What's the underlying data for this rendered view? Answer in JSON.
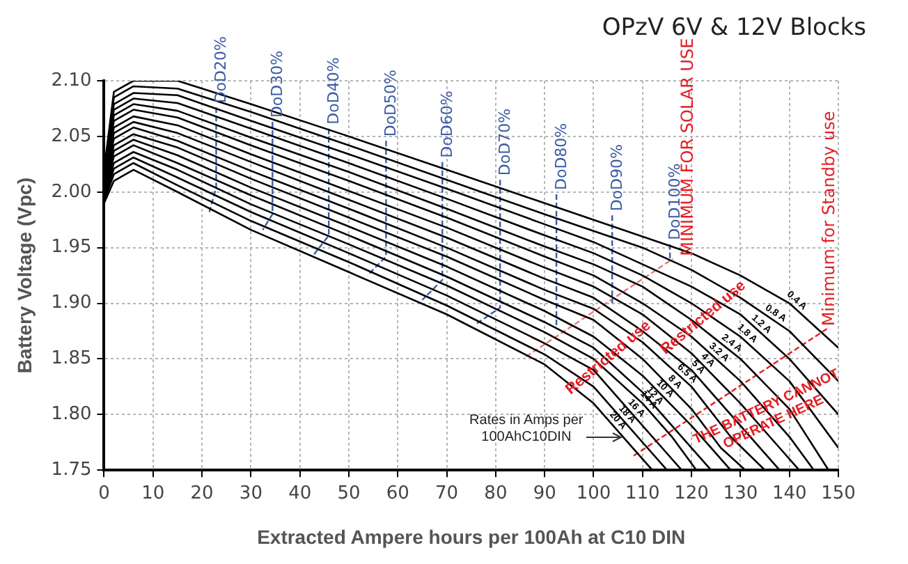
{
  "chart_data": {
    "type": "line",
    "title": "OPzV 6V & 12V Blocks",
    "xlabel": "Extracted Ampere hours per 100Ah at C10 DIN",
    "ylabel": "Battery Voltage (Vpc)",
    "xlim": [
      0,
      150
    ],
    "xticks": [
      0,
      10,
      20,
      30,
      40,
      50,
      60,
      70,
      80,
      90,
      100,
      110,
      120,
      130,
      140,
      150
    ],
    "ylim": [
      1.75,
      2.1
    ],
    "yticks": [
      1.75,
      {
        "value": 1.8,
        "label": "1.80"
      },
      1.85,
      {
        "value": 1.9,
        "label": "1.90"
      },
      1.95,
      {
        "value": 2.0,
        "label": "2.00"
      },
      2.05,
      {
        "value": 2.1,
        "label": "2.10"
      }
    ],
    "grid": true,
    "legend": false,
    "marker": "none",
    "series": [
      {
        "name": "0.4 A",
        "color": "#000000",
        "line_style": "solid",
        "x": [
          0,
          2,
          6,
          15,
          30,
          50,
          70,
          90,
          100,
          110,
          120,
          130,
          140,
          150
        ],
        "values": [
          2.02,
          2.09,
          2.1,
          2.1,
          2.079,
          2.05,
          2.02,
          1.99,
          1.975,
          1.96,
          1.945,
          1.925,
          1.9,
          1.86
        ]
      },
      {
        "name": "0.8 A",
        "color": "#000000",
        "line_style": "solid",
        "x": [
          0,
          2,
          6,
          15,
          30,
          50,
          70,
          90,
          100,
          110,
          120,
          130,
          140,
          150
        ],
        "values": [
          2.018,
          2.085,
          2.095,
          2.093,
          2.072,
          2.042,
          2.011,
          1.98,
          1.965,
          1.95,
          1.93,
          1.905,
          1.875,
          1.83
        ]
      },
      {
        "name": "1.2 A",
        "color": "#000000",
        "line_style": "solid",
        "x": [
          0,
          2,
          6,
          15,
          30,
          50,
          70,
          90,
          100,
          110,
          120,
          130,
          140,
          150
        ],
        "values": [
          2.016,
          2.079,
          2.089,
          2.087,
          2.064,
          2.034,
          2.003,
          1.971,
          1.955,
          1.935,
          1.915,
          1.89,
          1.85,
          1.8
        ]
      },
      {
        "name": "1.8 A",
        "color": "#000000",
        "line_style": "solid",
        "x": [
          0,
          2,
          6,
          15,
          30,
          50,
          70,
          90,
          100,
          110,
          120,
          130,
          140,
          150
        ],
        "values": [
          2.014,
          2.074,
          2.084,
          2.08,
          2.057,
          2.026,
          1.994,
          1.961,
          1.945,
          1.925,
          1.9,
          1.87,
          1.83,
          1.77
        ]
      },
      {
        "name": "2.4 A",
        "color": "#000000",
        "line_style": "solid",
        "x": [
          0,
          2,
          6,
          15,
          30,
          50,
          70,
          90,
          100,
          110,
          120,
          130,
          140,
          148
        ],
        "values": [
          2.012,
          2.069,
          2.079,
          2.073,
          2.049,
          2.018,
          1.985,
          1.951,
          1.935,
          1.915,
          1.885,
          1.85,
          1.805,
          1.75
        ]
      },
      {
        "name": "3.2 A",
        "color": "#000000",
        "line_style": "solid",
        "x": [
          0,
          2,
          6,
          15,
          30,
          50,
          70,
          90,
          100,
          110,
          120,
          130,
          140,
          145
        ],
        "values": [
          2.01,
          2.064,
          2.074,
          2.067,
          2.042,
          2.01,
          1.977,
          1.942,
          1.925,
          1.9,
          1.87,
          1.83,
          1.78,
          1.75
        ]
      },
      {
        "name": "4 A",
        "color": "#000000",
        "line_style": "solid",
        "x": [
          0,
          2,
          6,
          15,
          30,
          50,
          70,
          90,
          100,
          110,
          120,
          130,
          138,
          142
        ],
        "values": [
          2.008,
          2.058,
          2.068,
          2.06,
          2.034,
          2.001,
          1.968,
          1.932,
          1.915,
          1.89,
          1.855,
          1.81,
          1.77,
          1.75
        ]
      },
      {
        "name": "5 A",
        "color": "#000000",
        "line_style": "solid",
        "x": [
          0,
          2,
          6,
          15,
          30,
          50,
          70,
          90,
          100,
          110,
          120,
          130,
          138
        ],
        "values": [
          2.006,
          2.053,
          2.063,
          2.053,
          2.027,
          1.993,
          1.959,
          1.922,
          1.905,
          1.875,
          1.84,
          1.79,
          1.75
        ]
      },
      {
        "name": "6.5 A",
        "color": "#000000",
        "line_style": "solid",
        "x": [
          0,
          2,
          6,
          15,
          30,
          50,
          70,
          90,
          100,
          110,
          120,
          128,
          135
        ],
        "values": [
          2.004,
          2.048,
          2.058,
          2.046,
          2.019,
          1.985,
          1.95,
          1.912,
          1.895,
          1.865,
          1.825,
          1.78,
          1.75
        ]
      },
      {
        "name": "8 A",
        "color": "#000000",
        "line_style": "solid",
        "x": [
          0,
          2,
          6,
          15,
          30,
          50,
          70,
          90,
          100,
          110,
          120,
          126,
          131
        ],
        "values": [
          2.002,
          2.042,
          2.052,
          2.04,
          2.012,
          1.977,
          1.942,
          1.903,
          1.885,
          1.85,
          1.805,
          1.77,
          1.75
        ]
      },
      {
        "name": "10 A",
        "color": "#000000",
        "line_style": "solid",
        "x": [
          0,
          2,
          6,
          15,
          30,
          50,
          70,
          90,
          100,
          110,
          120,
          128
        ],
        "values": [
          2.0,
          2.037,
          2.047,
          2.033,
          2.004,
          1.969,
          1.933,
          1.893,
          1.87,
          1.835,
          1.79,
          1.75
        ]
      },
      {
        "name": "12 A",
        "color": "#000000",
        "line_style": "solid",
        "x": [
          0,
          2,
          6,
          15,
          30,
          50,
          70,
          90,
          100,
          110,
          118,
          124
        ],
        "values": [
          1.998,
          2.032,
          2.042,
          2.026,
          1.997,
          1.961,
          1.924,
          1.883,
          1.86,
          1.82,
          1.78,
          1.75
        ]
      },
      {
        "name": "14 A",
        "color": "#000000",
        "line_style": "solid",
        "x": [
          0,
          2,
          6,
          15,
          30,
          50,
          70,
          90,
          100,
          110,
          116,
          121
        ],
        "values": [
          1.996,
          2.026,
          2.036,
          2.02,
          1.989,
          1.953,
          1.916,
          1.874,
          1.85,
          1.81,
          1.78,
          1.75
        ]
      },
      {
        "name": "16 A",
        "color": "#000000",
        "line_style": "solid",
        "x": [
          0,
          2,
          6,
          15,
          30,
          50,
          70,
          90,
          100,
          108,
          114,
          118
        ],
        "values": [
          1.994,
          2.021,
          2.031,
          2.013,
          1.982,
          1.945,
          1.907,
          1.864,
          1.84,
          1.8,
          1.77,
          1.75
        ]
      },
      {
        "name": "18 A",
        "color": "#000000",
        "line_style": "solid",
        "x": [
          0,
          2,
          6,
          15,
          30,
          50,
          70,
          90,
          100,
          106,
          111,
          115
        ],
        "values": [
          1.992,
          2.016,
          2.026,
          2.006,
          1.974,
          1.937,
          1.898,
          1.854,
          1.825,
          1.795,
          1.77,
          1.75
        ]
      },
      {
        "name": "20 A",
        "color": "#000000",
        "line_style": "solid",
        "x": [
          0,
          2,
          6,
          15,
          30,
          50,
          70,
          90,
          100,
          106,
          112
        ],
        "values": [
          1.99,
          2.01,
          2.02,
          2.0,
          1.966,
          1.928,
          1.89,
          1.845,
          1.81,
          1.78,
          1.75
        ]
      },
      {
        "name": "DoD20%",
        "color": "#3b5ba5",
        "line_style": "dashed",
        "x": [
          22.9,
          22.9,
          21.5
        ],
        "values": [
          2.076,
          2.004,
          1.982
        ]
      },
      {
        "name": "DoD30%",
        "color": "#3b5ba5",
        "line_style": "dashed",
        "x": [
          34.4,
          34.4,
          32.4
        ],
        "values": [
          2.063,
          1.98,
          1.966
        ]
      },
      {
        "name": "DoD40%",
        "color": "#3b5ba5",
        "line_style": "dashed",
        "x": [
          45.9,
          45.9,
          42.9
        ],
        "values": [
          2.057,
          1.961,
          1.944
        ]
      },
      {
        "name": "DoD50%",
        "color": "#3b5ba5",
        "line_style": "dashed",
        "x": [
          57.6,
          57.6,
          53.8
        ],
        "values": [
          2.046,
          1.942,
          1.925
        ]
      },
      {
        "name": "DoD60%",
        "color": "#3b5ba5",
        "line_style": "dashed",
        "x": [
          69.1,
          69.1,
          65.0
        ],
        "values": [
          2.027,
          1.921,
          1.903
        ]
      },
      {
        "name": "DoD70%",
        "color": "#3b5ba5",
        "line_style": "dashed",
        "x": [
          80.9,
          80.9,
          75.9
        ],
        "values": [
          2.011,
          1.896,
          1.881
        ]
      },
      {
        "name": "DoD80%",
        "color": "#3b5ba5",
        "line_style": "dashed",
        "x": [
          92.4,
          92.4
        ],
        "values": [
          1.998,
          1.878
        ]
      },
      {
        "name": "DoD90%",
        "color": "#3b5ba5",
        "line_style": "dashed",
        "x": [
          103.8,
          103.8
        ],
        "values": [
          1.979,
          1.9
        ]
      },
      {
        "name": "DoD100%",
        "color": "#3b5ba5",
        "line_style": "dashed",
        "x": [
          115.6,
          115.6
        ],
        "values": [
          1.953,
          1.94
        ]
      },
      {
        "color": "#f07878",
        "line_style": "dashed",
        "x": [
          86.2,
          116.2
        ],
        "values": [
          1.852,
          1.94
        ]
      },
      {
        "color": "#e31e24",
        "line_style": "dashed",
        "x": [
          108.2,
          148
        ],
        "values": [
          1.763,
          1.878
        ]
      }
    ],
    "annotations": [
      {
        "text": "Restricted use",
        "x": 103,
        "y": 1.851
      },
      {
        "text": "Restricted use",
        "x": 122.4,
        "y": 1.887
      },
      {
        "text": "THE BATTERY CANNOT\nOPERATE HERE",
        "x": 136,
        "y": 1.8
      },
      "MINIMUM FOR SOLAR USE",
      "Minimum for Standby use",
      "Rates in Amps per\n100AhC10DIN"
    ]
  }
}
